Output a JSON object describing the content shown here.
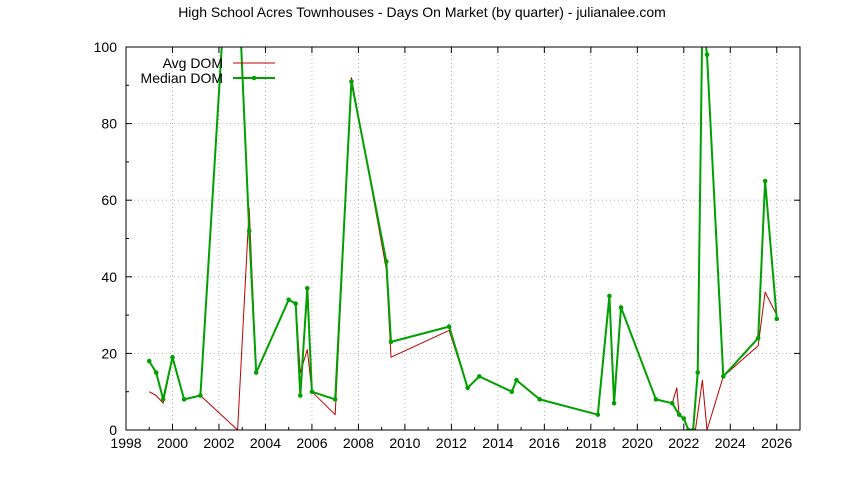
{
  "chart_data": {
    "type": "line",
    "title": "High School Acres Townhouses - Days On Market (by quarter) - julianalee.com",
    "xlabel": "",
    "ylabel": "",
    "xlim": [
      1998,
      2027
    ],
    "ylim": [
      0,
      100
    ],
    "x_ticks": [
      1998,
      2000,
      2002,
      2004,
      2006,
      2008,
      2010,
      2012,
      2014,
      2016,
      2018,
      2020,
      2022,
      2024,
      2026
    ],
    "y_ticks": [
      0,
      20,
      40,
      60,
      80,
      100
    ],
    "grid": true,
    "legend": "top-left",
    "series": [
      {
        "name": "Avg DOM",
        "color": "#c00000",
        "markers": false,
        "points": [
          [
            1999.0,
            10
          ],
          [
            1999.3,
            9
          ],
          [
            1999.6,
            7
          ],
          [
            2000.0,
            19
          ],
          [
            2000.5,
            8
          ],
          [
            2001.2,
            9
          ],
          [
            2002.8,
            0
          ],
          [
            2003.3,
            58
          ],
          [
            2003.6,
            15
          ],
          [
            2005.0,
            34
          ],
          [
            2005.3,
            33
          ],
          [
            2005.5,
            15
          ],
          [
            2005.8,
            21
          ],
          [
            2006.0,
            10
          ],
          [
            2007.0,
            4
          ],
          [
            2007.7,
            92
          ],
          [
            2009.2,
            42
          ],
          [
            2009.4,
            19
          ],
          [
            2011.9,
            26
          ],
          [
            2012.7,
            11
          ],
          [
            2013.2,
            14
          ],
          [
            2014.6,
            10
          ],
          [
            2014.8,
            13
          ],
          [
            2015.8,
            8
          ],
          [
            2018.3,
            4
          ],
          [
            2018.8,
            34
          ],
          [
            2019.0,
            7
          ],
          [
            2019.3,
            32
          ],
          [
            2020.8,
            8
          ],
          [
            2021.5,
            7
          ],
          [
            2021.7,
            11
          ],
          [
            2021.8,
            4
          ],
          [
            2022.0,
            3
          ],
          [
            2022.2,
            0
          ],
          [
            2022.5,
            0
          ],
          [
            2022.8,
            13
          ],
          [
            2023.0,
            0
          ],
          [
            2023.7,
            14
          ],
          [
            2025.2,
            22
          ],
          [
            2025.5,
            36
          ],
          [
            2026.0,
            30
          ]
        ]
      },
      {
        "name": "Median DOM",
        "color": "#00a000",
        "markers": true,
        "points": [
          [
            1999.0,
            18
          ],
          [
            1999.3,
            15
          ],
          [
            1999.6,
            8
          ],
          [
            2000.0,
            19
          ],
          [
            2000.5,
            8
          ],
          [
            2001.2,
            9
          ],
          [
            2002.2,
            108
          ],
          [
            2002.9,
            108
          ],
          [
            2003.3,
            52
          ],
          [
            2003.6,
            15
          ],
          [
            2005.0,
            34
          ],
          [
            2005.3,
            33
          ],
          [
            2005.5,
            9
          ],
          [
            2005.8,
            37
          ],
          [
            2006.0,
            10
          ],
          [
            2007.0,
            8
          ],
          [
            2007.7,
            91
          ],
          [
            2009.2,
            44
          ],
          [
            2009.4,
            23
          ],
          [
            2011.9,
            27
          ],
          [
            2012.7,
            11
          ],
          [
            2013.2,
            14
          ],
          [
            2014.6,
            10
          ],
          [
            2014.8,
            13
          ],
          [
            2015.8,
            8
          ],
          [
            2018.3,
            4
          ],
          [
            2018.8,
            35
          ],
          [
            2019.0,
            7
          ],
          [
            2019.3,
            32
          ],
          [
            2020.8,
            8
          ],
          [
            2021.5,
            7
          ],
          [
            2021.8,
            4
          ],
          [
            2022.0,
            3
          ],
          [
            2022.2,
            0
          ],
          [
            2022.4,
            0
          ],
          [
            2022.6,
            15
          ],
          [
            2022.8,
            108
          ],
          [
            2023.0,
            98
          ],
          [
            2023.7,
            14
          ],
          [
            2025.2,
            24
          ],
          [
            2025.5,
            65
          ],
          [
            2026.0,
            29
          ]
        ]
      }
    ]
  }
}
